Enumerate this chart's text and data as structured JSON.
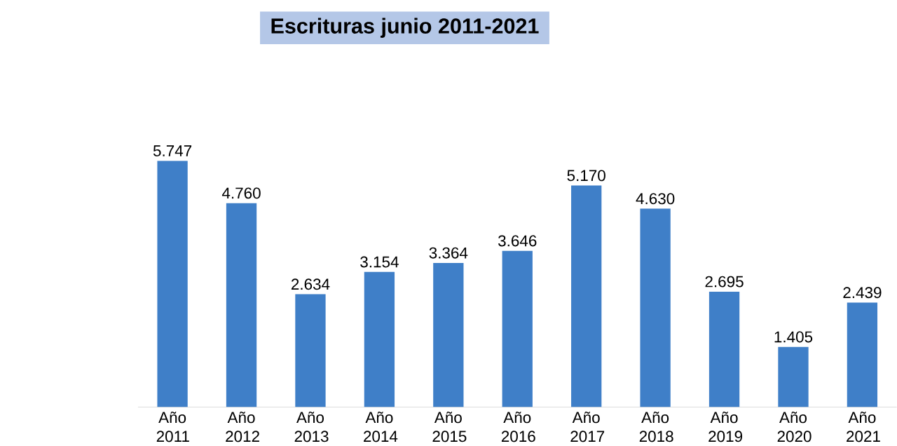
{
  "chart_data": {
    "type": "bar",
    "title": "Escrituras junio 2011-2021",
    "categories": [
      "Año 2011",
      "Año 2012",
      "Año 2013",
      "Año 2014",
      "Año 2015",
      "Año 2016",
      "Año 2017",
      "Año 2018",
      "Año 2019",
      "Año 2020",
      "Año 2021"
    ],
    "values": [
      5747,
      4760,
      2634,
      3154,
      3364,
      3646,
      5170,
      4630,
      2695,
      1405,
      2439
    ],
    "value_labels": [
      "5.747",
      "4.760",
      "2.634",
      "3.154",
      "3.364",
      "3.646",
      "5.170",
      "4.630",
      "2.695",
      "1.405",
      "2.439"
    ],
    "color": "#3f7fc8"
  }
}
